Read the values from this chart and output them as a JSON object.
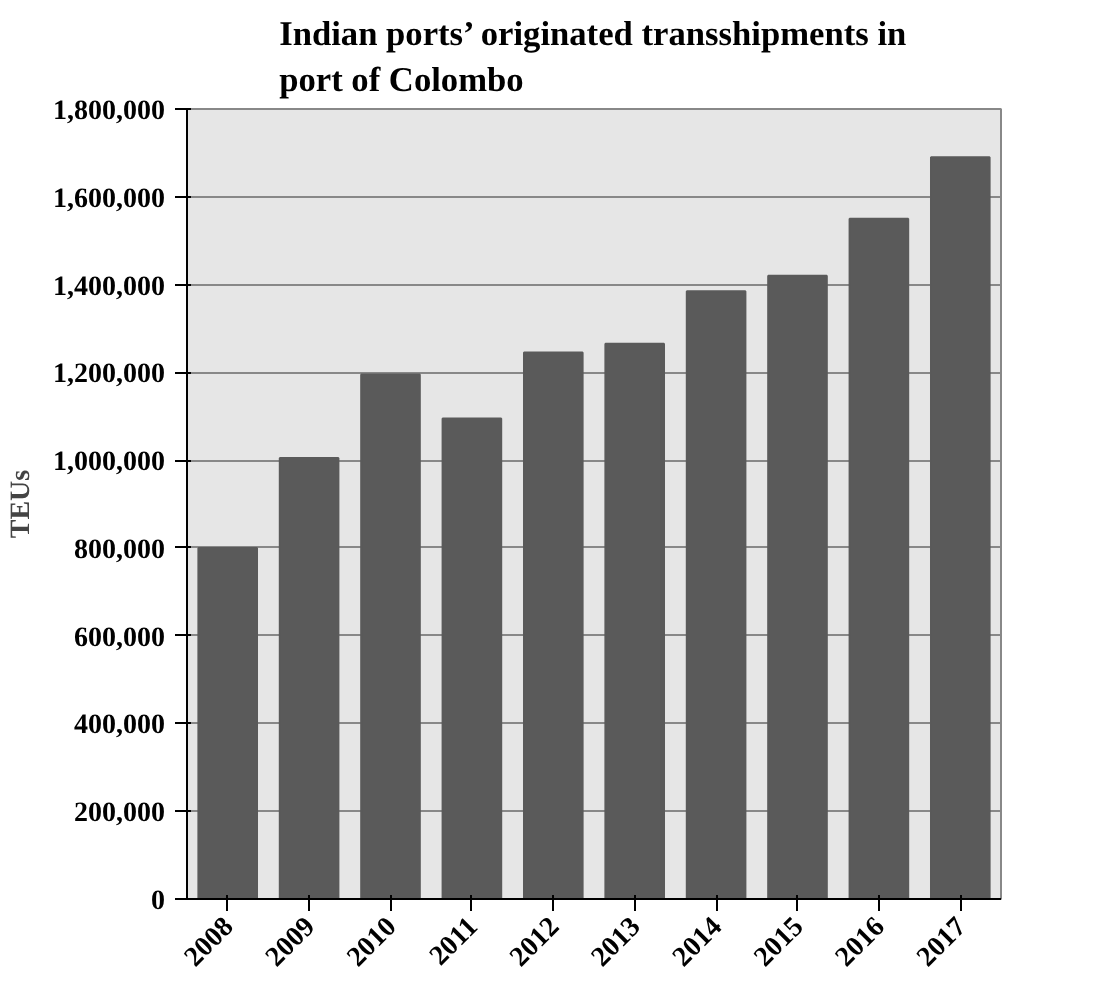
{
  "chart_data": {
    "type": "bar",
    "title": "Indian ports’ originated transshipments in port of Colombo",
    "ylabel": "TEUs",
    "categories": [
      "2008",
      "2009",
      "2010",
      "2011",
      "2012",
      "2013",
      "2014",
      "2015",
      "2016",
      "2017"
    ],
    "values": [
      800000,
      1005000,
      1195000,
      1095000,
      1245000,
      1265000,
      1385000,
      1420000,
      1550000,
      1690000
    ],
    "color": "#5a5a5a",
    "ylim": [
      0,
      1800000
    ],
    "yticks": [
      {
        "value": 0,
        "label": "0"
      },
      {
        "value": 200000,
        "label": "200,000"
      },
      {
        "value": 400000,
        "label": "400,000"
      },
      {
        "value": 600000,
        "label": "600,000"
      },
      {
        "value": 800000,
        "label": "800,000"
      },
      {
        "value": 1000000,
        "label": "1,000,000"
      },
      {
        "value": 1200000,
        "label": "1,200,000"
      },
      {
        "value": 1400000,
        "label": "1,400,000"
      },
      {
        "value": 1600000,
        "label": "1,600,000"
      },
      {
        "value": 1800000,
        "label": "1,800,000"
      }
    ],
    "grid": "y"
  }
}
